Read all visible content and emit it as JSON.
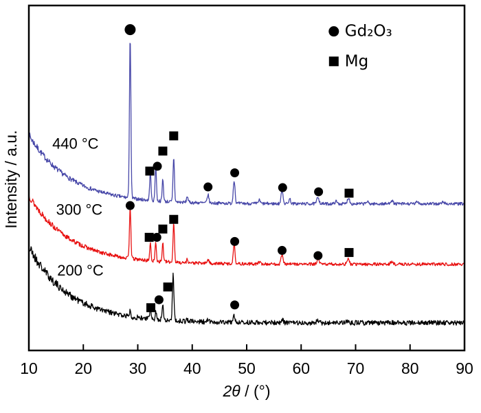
{
  "chart_data": {
    "type": "line",
    "title": "",
    "xlabel": "2θ / (°)",
    "xlabel_parts": {
      "italic": "2θ",
      "rest": " / (°)"
    },
    "ylabel": "Intensity / a.u.",
    "xlim": [
      10,
      90
    ],
    "ylim": [
      0,
      1
    ],
    "x_ticks": [
      10,
      20,
      30,
      40,
      50,
      60,
      70,
      80,
      90
    ],
    "y_axis_note": "arbitrary units, no tick marks",
    "grid": false,
    "legend_position": "top-right inside",
    "legend": [
      {
        "shape": "circle",
        "label": "Gd₂O₃",
        "x": 66,
        "y": 0.925
      },
      {
        "shape": "square",
        "label": "Mg",
        "x": 66,
        "y": 0.838
      }
    ],
    "series": [
      {
        "name": "440 °C",
        "color": "#4747a8",
        "seed": 7,
        "baseline": 0.425,
        "bg_amp": 0.2,
        "bg_decay": 7.5,
        "noise": 0.0045,
        "label_x": 14.3,
        "label_y": 0.6,
        "peaks": [
          [
            28.6,
            0.47,
            0.13
          ],
          [
            32.3,
            0.085,
            0.12
          ],
          [
            33.3,
            0.105,
            0.12
          ],
          [
            34.6,
            0.065,
            0.12
          ],
          [
            36.6,
            0.13,
            0.13
          ],
          [
            39.1,
            0.018,
            0.14
          ],
          [
            42.9,
            0.024,
            0.16
          ],
          [
            47.7,
            0.068,
            0.16
          ],
          [
            52.3,
            0.01,
            0.18
          ],
          [
            56.5,
            0.038,
            0.18
          ],
          [
            57.9,
            0.014,
            0.18
          ],
          [
            63.1,
            0.02,
            0.2
          ],
          [
            66.4,
            0.007,
            0.2
          ],
          [
            68.7,
            0.018,
            0.2
          ],
          [
            72.1,
            0.006,
            0.22
          ],
          [
            76.6,
            0.01,
            0.24
          ],
          [
            81.4,
            0.006,
            0.25
          ],
          [
            86.1,
            0.005,
            0.25
          ]
        ]
      },
      {
        "name": "300 °C",
        "color": "#e81010",
        "seed": 13,
        "baseline": 0.25,
        "bg_amp": 0.2,
        "bg_decay": 7.5,
        "noise": 0.0045,
        "label_x": 15.0,
        "label_y": 0.408,
        "peaks": [
          [
            28.6,
            0.15,
            0.13
          ],
          [
            32.3,
            0.05,
            0.12
          ],
          [
            33.3,
            0.055,
            0.12
          ],
          [
            34.6,
            0.055,
            0.12
          ],
          [
            36.6,
            0.115,
            0.13
          ],
          [
            39.1,
            0.01,
            0.14
          ],
          [
            42.9,
            0.012,
            0.16
          ],
          [
            47.7,
            0.058,
            0.16
          ],
          [
            52.3,
            0.006,
            0.18
          ],
          [
            56.5,
            0.03,
            0.18
          ],
          [
            63.1,
            0.014,
            0.2
          ],
          [
            68.6,
            0.015,
            0.2
          ],
          [
            76.6,
            0.006,
            0.24
          ]
        ]
      },
      {
        "name": "200 °C",
        "color": "#000000",
        "seed": 21,
        "baseline": 0.08,
        "bg_amp": 0.22,
        "bg_decay": 7.5,
        "noise": 0.007,
        "label_x": 15.2,
        "label_y": 0.232,
        "peaks": [
          [
            28.6,
            0.016,
            0.14
          ],
          [
            32.3,
            0.03,
            0.12
          ],
          [
            33.3,
            0.026,
            0.12
          ],
          [
            34.6,
            0.048,
            0.13
          ],
          [
            36.5,
            0.135,
            0.14
          ],
          [
            39.1,
            0.006,
            0.15
          ],
          [
            42.9,
            0.006,
            0.16
          ],
          [
            47.7,
            0.02,
            0.16
          ],
          [
            56.6,
            0.008,
            0.18
          ],
          [
            63.0,
            0.005,
            0.2
          ],
          [
            68.5,
            0.006,
            0.2
          ]
        ]
      }
    ],
    "markers": [
      {
        "shape": "circle",
        "x": 28.6,
        "y": 0.93,
        "size": 8
      },
      {
        "shape": "square",
        "x": 32.2,
        "y": 0.52,
        "size": 6.5
      },
      {
        "shape": "circle",
        "x": 33.6,
        "y": 0.534,
        "size": 6.5
      },
      {
        "shape": "square",
        "x": 34.6,
        "y": 0.578,
        "size": 6.5
      },
      {
        "shape": "square",
        "x": 36.6,
        "y": 0.622,
        "size": 6.5
      },
      {
        "shape": "circle",
        "x": 42.9,
        "y": 0.474,
        "size": 6.5
      },
      {
        "shape": "circle",
        "x": 47.8,
        "y": 0.515,
        "size": 6.5
      },
      {
        "shape": "circle",
        "x": 56.6,
        "y": 0.472,
        "size": 6.5
      },
      {
        "shape": "circle",
        "x": 63.2,
        "y": 0.46,
        "size": 6.5
      },
      {
        "shape": "square",
        "x": 68.8,
        "y": 0.456,
        "size": 6.5
      },
      {
        "shape": "circle",
        "x": 28.6,
        "y": 0.42,
        "size": 6.5
      },
      {
        "shape": "square",
        "x": 32.1,
        "y": 0.328,
        "size": 6.5
      },
      {
        "shape": "circle",
        "x": 33.5,
        "y": 0.328,
        "size": 6.5
      },
      {
        "shape": "square",
        "x": 34.6,
        "y": 0.352,
        "size": 6.5
      },
      {
        "shape": "square",
        "x": 36.6,
        "y": 0.38,
        "size": 6.5
      },
      {
        "shape": "circle",
        "x": 47.8,
        "y": 0.316,
        "size": 6.5
      },
      {
        "shape": "circle",
        "x": 56.5,
        "y": 0.29,
        "size": 6.5
      },
      {
        "shape": "circle",
        "x": 63.1,
        "y": 0.275,
        "size": 6.5
      },
      {
        "shape": "square",
        "x": 68.8,
        "y": 0.284,
        "size": 6.5
      },
      {
        "shape": "square",
        "x": 32.4,
        "y": 0.124,
        "size": 6.5
      },
      {
        "shape": "circle",
        "x": 33.9,
        "y": 0.147,
        "size": 6.5
      },
      {
        "shape": "square",
        "x": 35.5,
        "y": 0.184,
        "size": 6.5
      },
      {
        "shape": "circle",
        "x": 47.8,
        "y": 0.132,
        "size": 6.5
      }
    ],
    "marker_legend_meaning": {
      "circle": "Gd₂O₃",
      "square": "Mg"
    }
  }
}
